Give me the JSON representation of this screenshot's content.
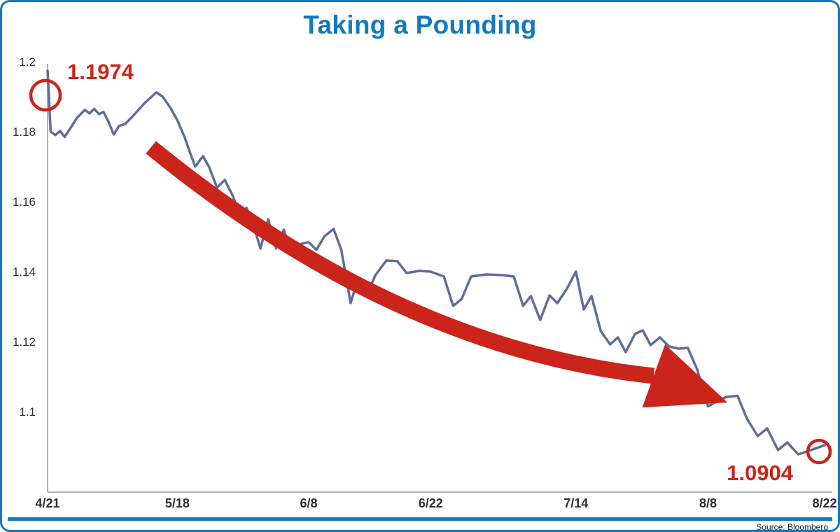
{
  "title": "Taking a Pounding",
  "source": "Source: Bloomberg",
  "colors": {
    "accent_blue": "#1478bf",
    "line_blue": "#5f6d9b",
    "annotation_red": "#cb241b",
    "axis_gray": "#9b9b9b",
    "tick_text": "#2e2e2e"
  },
  "chart_data": {
    "type": "line",
    "title": "Taking a Pounding",
    "source": "Source: Bloomberg",
    "ylim": [
      1.08,
      1.2
    ],
    "grid": false,
    "legend": false,
    "y_ticks": [
      1.2,
      1.18,
      1.16,
      1.14,
      1.12,
      1.1
    ],
    "y_tick_labels": [
      "1.2",
      "1.18",
      "1.16",
      "1.14",
      "1.12",
      "1.1"
    ],
    "x_tick_labels": [
      "4/21",
      "5/18",
      "6/8",
      "6/22",
      "7/14",
      "8/8",
      "8/22"
    ],
    "x_tick_pos": [
      0,
      0.167,
      0.336,
      0.493,
      0.68,
      0.85,
      1.0
    ],
    "series": [
      {
        "name": "exchange rate",
        "points": [
          [
            0.0,
            1.1974
          ],
          [
            0.004,
            1.18
          ],
          [
            0.01,
            1.179
          ],
          [
            0.016,
            1.1802
          ],
          [
            0.022,
            1.1785
          ],
          [
            0.03,
            1.1812
          ],
          [
            0.038,
            1.184
          ],
          [
            0.048,
            1.1862
          ],
          [
            0.054,
            1.1852
          ],
          [
            0.06,
            1.1865
          ],
          [
            0.066,
            1.185
          ],
          [
            0.072,
            1.1856
          ],
          [
            0.078,
            1.183
          ],
          [
            0.085,
            1.1792
          ],
          [
            0.092,
            1.1816
          ],
          [
            0.1,
            1.1822
          ],
          [
            0.11,
            1.1845
          ],
          [
            0.125,
            1.1882
          ],
          [
            0.14,
            1.1912
          ],
          [
            0.148,
            1.19
          ],
          [
            0.158,
            1.1868
          ],
          [
            0.167,
            1.1832
          ],
          [
            0.176,
            1.1786
          ],
          [
            0.183,
            1.1742
          ],
          [
            0.19,
            1.17
          ],
          [
            0.2,
            1.173
          ],
          [
            0.208,
            1.1698
          ],
          [
            0.218,
            1.164
          ],
          [
            0.228,
            1.1662
          ],
          [
            0.238,
            1.1618
          ],
          [
            0.248,
            1.1562
          ],
          [
            0.256,
            1.1582
          ],
          [
            0.264,
            1.154
          ],
          [
            0.274,
            1.1466
          ],
          [
            0.284,
            1.155
          ],
          [
            0.294,
            1.1466
          ],
          [
            0.304,
            1.152
          ],
          [
            0.314,
            1.145
          ],
          [
            0.324,
            1.1478
          ],
          [
            0.336,
            1.1484
          ],
          [
            0.346,
            1.1462
          ],
          [
            0.356,
            1.15
          ],
          [
            0.368,
            1.1522
          ],
          [
            0.378,
            1.1462
          ],
          [
            0.39,
            1.131
          ],
          [
            0.4,
            1.1382
          ],
          [
            0.41,
            1.133
          ],
          [
            0.422,
            1.139
          ],
          [
            0.436,
            1.1432
          ],
          [
            0.45,
            1.143
          ],
          [
            0.462,
            1.1396
          ],
          [
            0.478,
            1.1402
          ],
          [
            0.493,
            1.14
          ],
          [
            0.51,
            1.1386
          ],
          [
            0.522,
            1.1302
          ],
          [
            0.533,
            1.1322
          ],
          [
            0.545,
            1.1386
          ],
          [
            0.565,
            1.1392
          ],
          [
            0.585,
            1.139
          ],
          [
            0.6,
            1.1386
          ],
          [
            0.612,
            1.1302
          ],
          [
            0.622,
            1.133
          ],
          [
            0.634,
            1.1262
          ],
          [
            0.646,
            1.1332
          ],
          [
            0.656,
            1.131
          ],
          [
            0.668,
            1.135
          ],
          [
            0.68,
            1.14
          ],
          [
            0.69,
            1.1292
          ],
          [
            0.7,
            1.133
          ],
          [
            0.712,
            1.123
          ],
          [
            0.724,
            1.1192
          ],
          [
            0.734,
            1.1212
          ],
          [
            0.744,
            1.117
          ],
          [
            0.756,
            1.1222
          ],
          [
            0.766,
            1.1232
          ],
          [
            0.776,
            1.119
          ],
          [
            0.788,
            1.1212
          ],
          [
            0.8,
            1.1186
          ],
          [
            0.812,
            1.118
          ],
          [
            0.824,
            1.1182
          ],
          [
            0.836,
            1.112
          ],
          [
            0.85,
            1.1015
          ],
          [
            0.862,
            1.103
          ],
          [
            0.874,
            1.1042
          ],
          [
            0.888,
            1.1045
          ],
          [
            0.9,
            1.098
          ],
          [
            0.914,
            1.093
          ],
          [
            0.926,
            1.0952
          ],
          [
            0.94,
            1.089
          ],
          [
            0.952,
            1.0912
          ],
          [
            0.966,
            1.0878
          ],
          [
            0.98,
            1.0888
          ],
          [
            1.0,
            1.0904
          ]
        ]
      }
    ],
    "annotations": {
      "start": {
        "label": "1.1974",
        "value": 1.1974,
        "date": "4/21"
      },
      "end": {
        "label": "1.0904",
        "value": 1.0904,
        "date": "8/22"
      },
      "trend_arrow": {
        "start": {
          "f": 0.133,
          "v": 1.1755
        },
        "control": {
          "f": 0.45,
          "v": 1.118
        },
        "base": {
          "f": 0.78,
          "v": 1.1102
        },
        "tip": {
          "f": 0.875,
          "v": 1.1026
        }
      }
    }
  }
}
